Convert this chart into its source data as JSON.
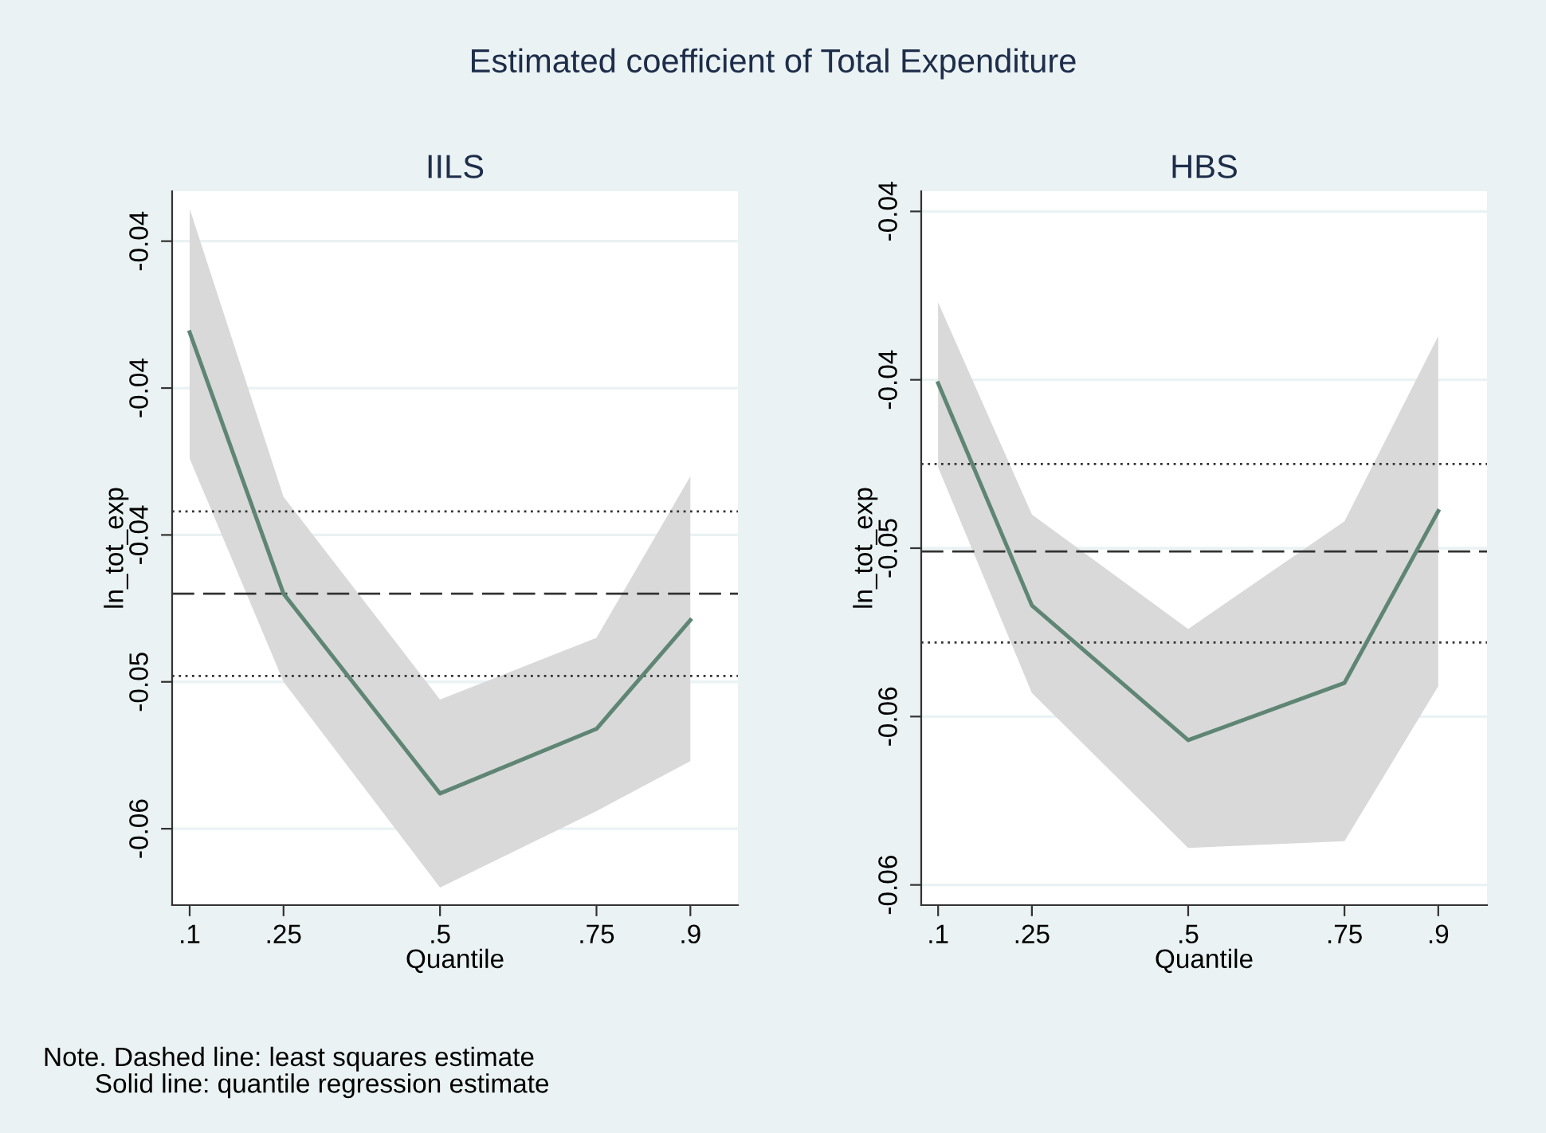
{
  "chart_data": [
    {
      "type": "line",
      "title": "IILS",
      "xlabel": "Quantile",
      "ylabel": "ln_tot_exp",
      "annotations": [
        "Estimated coefficient of Total Expenditure",
        "Note. Dashed line: least squares estimate\n       Solid line: quantile regression estimate"
      ],
      "x": [
        0.1,
        0.25,
        0.5,
        0.75,
        0.9
      ],
      "series": [
        {
          "color": "#5f8575",
          "values": [
            -0.0381,
            -0.047,
            -0.0538,
            -0.0516,
            -0.0479
          ],
          "lower": [
            -0.0424,
            -0.05,
            -0.057,
            -0.0544,
            -0.0527
          ],
          "upper": [
            -0.0339,
            -0.0437,
            -0.0506,
            -0.0485,
            -0.043
          ]
        }
      ],
      "ref_lines": [
        {
          "axis": "y",
          "value": -0.047,
          "color": "#333333",
          "line_style": "dashed"
        },
        {
          "axis": "y",
          "value": -0.0442,
          "color": "#333333",
          "line_style": "dotted"
        },
        {
          "axis": "y",
          "value": -0.0498,
          "color": "#333333",
          "line_style": "dotted"
        }
      ],
      "xlim": [
        0.072,
        0.976
      ],
      "xticks": [
        {
          "value": 0.1,
          "label": ".1"
        },
        {
          "value": 0.25,
          "label": ".25"
        },
        {
          "value": 0.5,
          "label": ".5"
        },
        {
          "value": 0.75,
          "label": ".75"
        },
        {
          "value": 0.9,
          "label": ".9"
        }
      ],
      "ylim": [
        -0.0576,
        -0.0333
      ],
      "yticks": [
        {
          "value": -0.055,
          "label": "-0.06"
        },
        {
          "value": -0.05,
          "label": "-0.05"
        },
        {
          "value": -0.045,
          "label": "-0.04"
        },
        {
          "value": -0.04,
          "label": "-0.04"
        },
        {
          "value": -0.035,
          "label": "-0.04"
        }
      ],
      "grid": "y",
      "marker": "none",
      "line_style": "solid"
    },
    {
      "type": "line",
      "title": "HBS",
      "xlabel": "Quantile",
      "ylabel": "ln_tot_exp",
      "x": [
        0.1,
        0.25,
        0.5,
        0.75,
        0.9
      ],
      "series": [
        {
          "color": "#5f8575",
          "values": [
            -0.0451,
            -0.0517,
            -0.0557,
            -0.054,
            -0.0489
          ],
          "lower": [
            -0.0476,
            -0.0543,
            -0.0589,
            -0.0587,
            -0.0541
          ],
          "upper": [
            -0.0427,
            -0.049,
            -0.0524,
            -0.0492,
            -0.0437
          ]
        }
      ],
      "ref_lines": [
        {
          "axis": "y",
          "value": -0.0501,
          "color": "#333333",
          "line_style": "dashed"
        },
        {
          "axis": "y",
          "value": -0.0475,
          "color": "#333333",
          "line_style": "dotted"
        },
        {
          "axis": "y",
          "value": -0.0528,
          "color": "#333333",
          "line_style": "dotted"
        }
      ],
      "xlim": [
        0.073,
        0.978
      ],
      "xticks": [
        {
          "value": 0.1,
          "label": ".1"
        },
        {
          "value": 0.25,
          "label": ".25"
        },
        {
          "value": 0.5,
          "label": ".5"
        },
        {
          "value": 0.75,
          "label": ".75"
        },
        {
          "value": 0.9,
          "label": ".9"
        }
      ],
      "ylim": [
        -0.0606,
        -0.0394
      ],
      "yticks": [
        {
          "value": -0.06,
          "label": "-0.06"
        },
        {
          "value": -0.055,
          "label": "-0.06"
        },
        {
          "value": -0.05,
          "label": "-0.05"
        },
        {
          "value": -0.045,
          "label": "-0.04"
        },
        {
          "value": -0.04,
          "label": "-0.04"
        }
      ],
      "grid": "y",
      "marker": "none",
      "line_style": "solid"
    }
  ]
}
